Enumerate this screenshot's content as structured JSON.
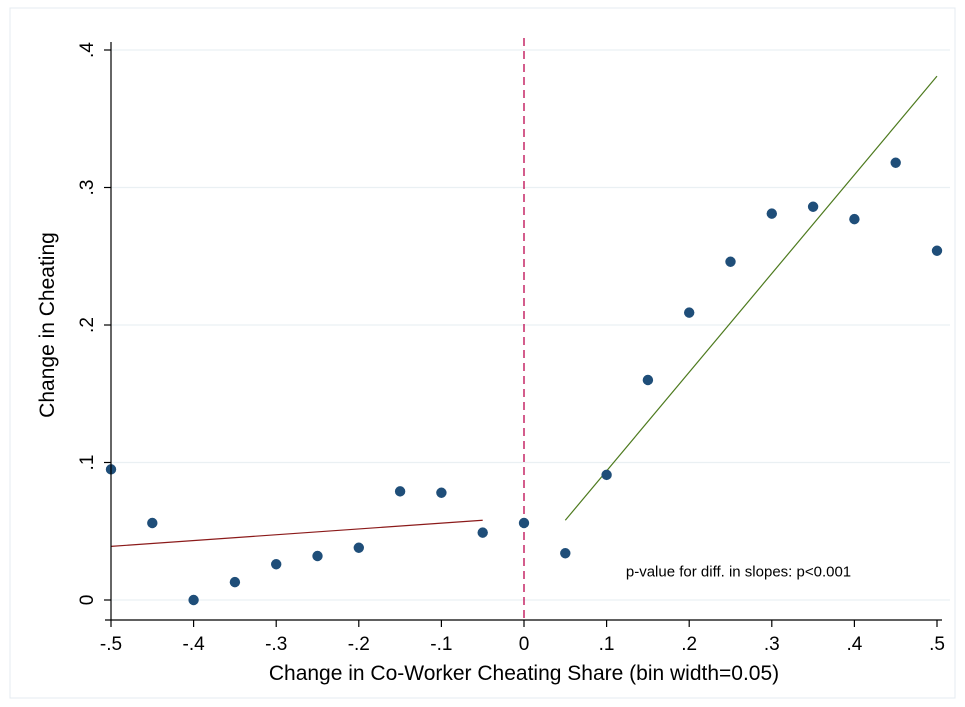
{
  "chart_data": {
    "type": "scatter",
    "title": "",
    "xlabel": "Change in Co-Worker Cheating Share (bin width=0.05)",
    "ylabel": "Change in Cheating",
    "xlim": [
      -0.5,
      0.5
    ],
    "ylim": [
      0,
      0.4
    ],
    "x_ticks": [
      -0.5,
      -0.4,
      -0.3,
      -0.2,
      -0.1,
      0,
      0.1,
      0.2,
      0.3,
      0.4,
      0.5
    ],
    "x_tick_labels": [
      "-.5",
      "-.4",
      "-.3",
      "-.2",
      "-.1",
      "0",
      ".1",
      ".2",
      ".3",
      ".4",
      ".5"
    ],
    "y_ticks": [
      0,
      0.1,
      0.2,
      0.3,
      0.4
    ],
    "y_tick_labels": [
      "0",
      ".1",
      ".2",
      ".3",
      ".4"
    ],
    "grid": "horizontal",
    "series": [
      {
        "x": [
          -0.5,
          -0.45,
          -0.4,
          -0.35,
          -0.3,
          -0.25,
          -0.2,
          -0.15,
          -0.1,
          -0.05,
          0,
          0.05,
          0.1,
          0.15,
          0.2,
          0.25,
          0.3,
          0.35,
          0.4,
          0.45,
          0.5
        ],
        "y": [
          0.095,
          0.056,
          0.0,
          0.013,
          0.026,
          0.032,
          0.038,
          0.079,
          0.078,
          0.049,
          0.056,
          0.034,
          0.091,
          0.16,
          0.209,
          0.246,
          0.281,
          0.286,
          0.277,
          0.318,
          0.254
        ],
        "color": "#1f4e79"
      }
    ],
    "fit_lines": [
      {
        "x": [
          -0.5,
          -0.05
        ],
        "y": [
          0.039,
          0.058
        ],
        "color": "#8b1a1a"
      },
      {
        "x": [
          0.05,
          0.5
        ],
        "y": [
          0.058,
          0.381
        ],
        "color": "#4d7a1e"
      }
    ],
    "reference_line": {
      "x": 0,
      "color": "#c2185b",
      "style": "dashed"
    },
    "annotation": {
      "text": "p-value for diff. in slopes: p<0.001",
      "x": 0.11,
      "y": 0.017
    }
  }
}
